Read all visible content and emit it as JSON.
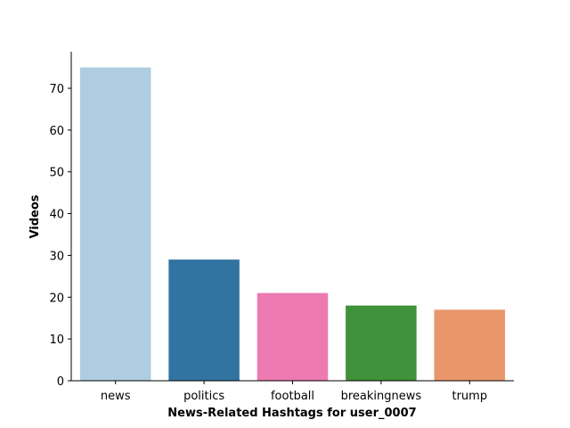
{
  "chart_data": {
    "type": "bar",
    "title": "",
    "xlabel": "News-Related Hashtags for user_0007",
    "ylabel": "Videos",
    "categories": [
      "news",
      "politics",
      "football",
      "breakingnews",
      "trump"
    ],
    "values": [
      75,
      29,
      21,
      18,
      17
    ],
    "colors": [
      "#aecde1",
      "#3274a1",
      "#ed7ab1",
      "#3f923a",
      "#e9966c"
    ],
    "ylim": [
      0,
      78.75
    ],
    "yticks": [
      0,
      10,
      20,
      30,
      40,
      50,
      60,
      70
    ],
    "grid": false,
    "legend": "none"
  }
}
